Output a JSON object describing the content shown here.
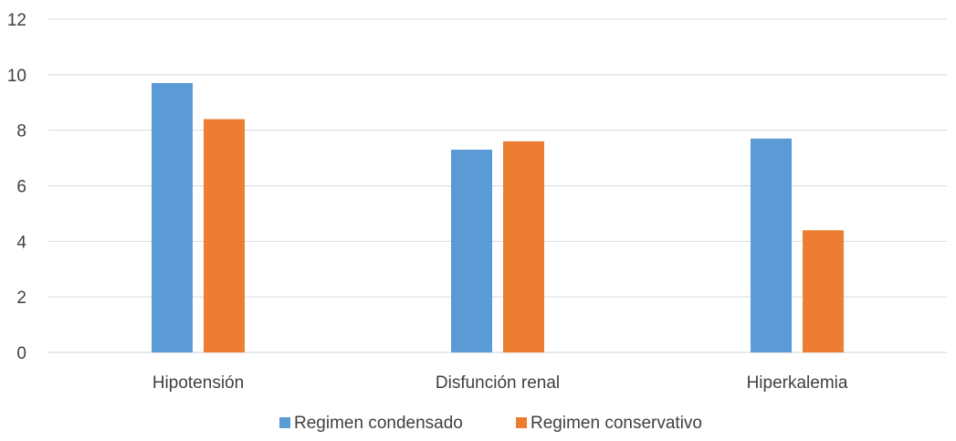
{
  "chart_data": {
    "type": "bar",
    "title": "",
    "xlabel": "",
    "ylabel": "",
    "categories": [
      "Hipotensión",
      "Disfunción renal",
      "Hiperkalemia"
    ],
    "series": [
      {
        "name": "Regimen condensado",
        "color": "#5B9BD5",
        "values": [
          9.7,
          7.3,
          7.7
        ]
      },
      {
        "name": "Regimen conservativo",
        "color": "#ED7D31",
        "values": [
          8.4,
          7.6,
          4.4
        ]
      }
    ],
    "ylim": [
      0,
      12
    ],
    "yticks": [
      0,
      2,
      4,
      6,
      8,
      10,
      12
    ],
    "grid": true,
    "legend_position": "bottom"
  }
}
